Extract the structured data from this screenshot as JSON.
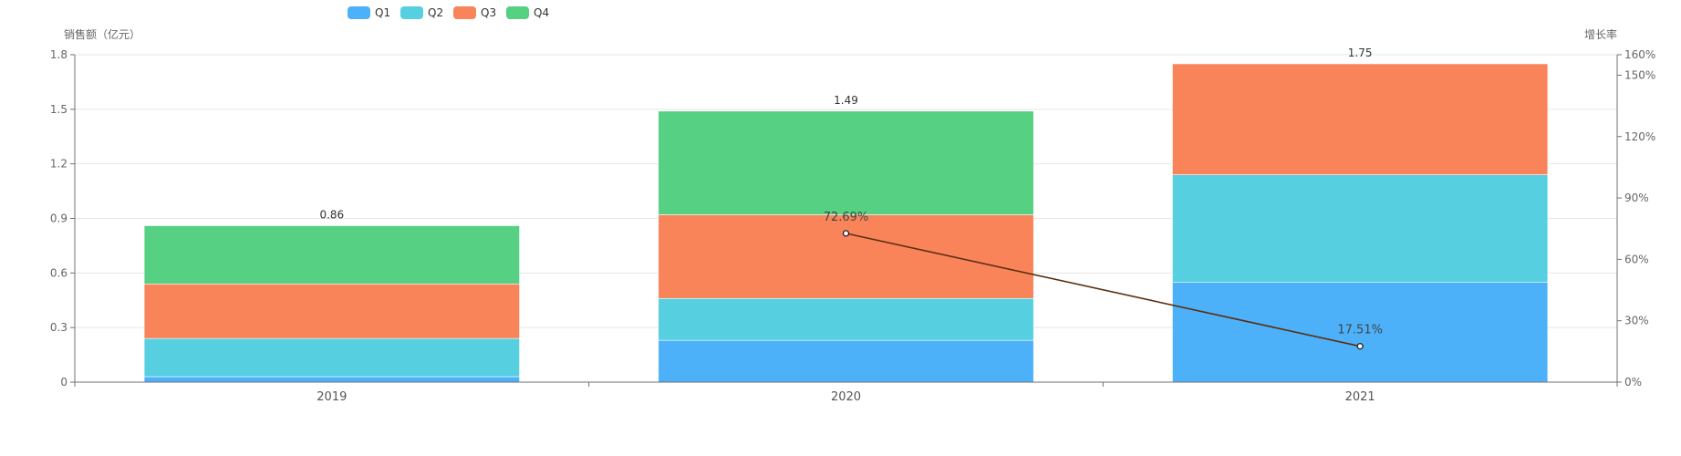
{
  "chart_data": {
    "type": "bar",
    "stacked": true,
    "categories": [
      "2019",
      "2020",
      "2021"
    ],
    "series": [
      {
        "name": "Q1",
        "values": [
          0.03,
          0.23,
          0.55
        ],
        "color": "#4db1f9"
      },
      {
        "name": "Q2",
        "values": [
          0.21,
          0.23,
          0.59
        ],
        "color": "#56cfe0"
      },
      {
        "name": "Q3",
        "values": [
          0.3,
          0.46,
          0.61
        ],
        "color": "#fa845a"
      },
      {
        "name": "Q4",
        "values": [
          0.32,
          0.57,
          0.0
        ],
        "color": "#56d082"
      }
    ],
    "totals": [
      0.86,
      1.49,
      1.75
    ],
    "total_labels": [
      "0.86",
      "1.49",
      "1.75"
    ],
    "line_series": {
      "name": "",
      "axis": "right",
      "x": [
        "2020",
        "2021"
      ],
      "values": [
        72.69,
        17.51
      ],
      "labels": [
        "72.69%",
        "17.51%"
      ],
      "color": "#5a2f10"
    },
    "ylabel": "销售额（亿元）",
    "ylabel_right": "增长率",
    "ylim": [
      0,
      1.8
    ],
    "yticks": [
      "0",
      "0.3",
      "0.6",
      "0.9",
      "1.2",
      "1.5",
      "1.8"
    ],
    "ylim_right": [
      0,
      160
    ],
    "yticks_right": [
      "0%",
      "30%",
      "60%",
      "90%",
      "120%",
      "150%",
      "160%"
    ],
    "yticks_right_values": [
      0,
      30,
      60,
      90,
      120,
      150,
      160
    ],
    "grid": true,
    "legend_position": "top-left"
  }
}
